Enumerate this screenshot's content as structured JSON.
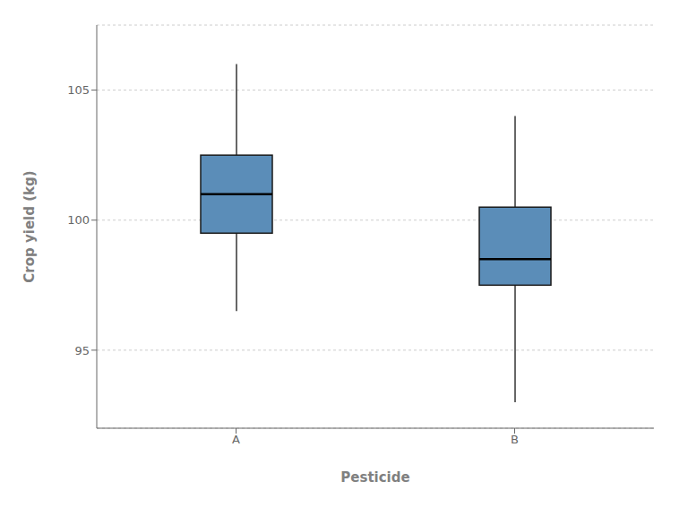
{
  "chart_data": {
    "type": "box",
    "categories": [
      "A",
      "B"
    ],
    "values": [
      {
        "median": 101.0,
        "q1": 99.5,
        "q3": 102.5,
        "whisker_low": 96.5,
        "whisker_high": 106.0
      },
      {
        "median": 98.5,
        "q1": 97.5,
        "q3": 100.5,
        "whisker_low": 93.0,
        "whisker_high": 104.0
      }
    ],
    "color": "#5b8db8",
    "xlabel": "Pesticide",
    "ylabel": "Crop yield (kg)",
    "ylim": [
      92.0,
      107.5
    ],
    "yticks": [
      95,
      100,
      105
    ],
    "grid": true
  }
}
